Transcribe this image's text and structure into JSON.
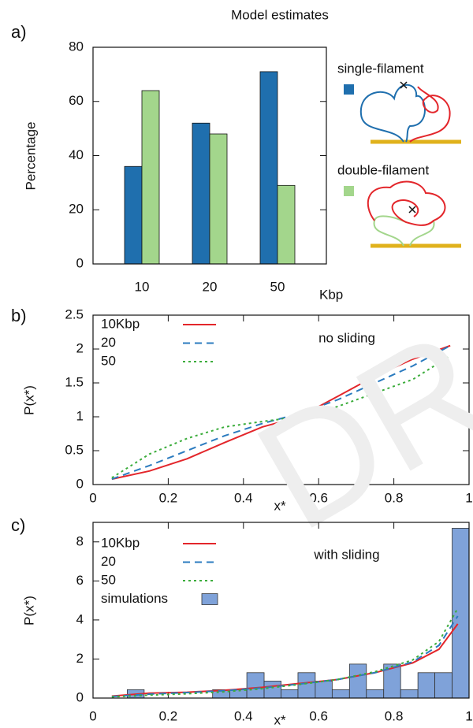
{
  "chart_data": [
    {
      "type": "bar",
      "panel_label": "a)",
      "title": "Model estimates",
      "ylabel": "Percentage",
      "xlabel": "Kbp",
      "categories": [
        "10",
        "20",
        "50"
      ],
      "series": [
        {
          "name": "single-filament",
          "color": "#1f6fae",
          "values": [
            36,
            52,
            71
          ]
        },
        {
          "name": "double-filament",
          "color": "#a3d68c",
          "values": [
            64,
            48,
            29
          ]
        }
      ],
      "ylim": [
        0,
        80
      ],
      "yticks": [
        0,
        20,
        40,
        60,
        80
      ],
      "legend": "right"
    },
    {
      "type": "line",
      "panel_label": "b)",
      "ylabel": "P(x*)",
      "xlabel": "x*",
      "annotation": "no sliding",
      "x": [
        0.05,
        0.15,
        0.25,
        0.35,
        0.45,
        0.55,
        0.65,
        0.75,
        0.85,
        0.95
      ],
      "series": [
        {
          "name": "10Kbp",
          "color": "#e3262b",
          "dash": "solid",
          "values": [
            0.08,
            0.2,
            0.38,
            0.62,
            0.85,
            1.0,
            1.3,
            1.6,
            1.85,
            2.05
          ]
        },
        {
          "name": "20",
          "color": "#2b7bbf",
          "dash": "dashed",
          "values": [
            0.08,
            0.28,
            0.5,
            0.72,
            0.9,
            1.05,
            1.25,
            1.5,
            1.75,
            2.05
          ]
        },
        {
          "name": "50",
          "color": "#3cad3c",
          "dash": "dotted",
          "values": [
            0.1,
            0.45,
            0.68,
            0.85,
            0.93,
            1.0,
            1.15,
            1.35,
            1.55,
            1.9
          ]
        }
      ],
      "xlim": [
        0,
        1
      ],
      "xticks": [
        0,
        0.2,
        0.4,
        0.6,
        0.8,
        1
      ],
      "ylim": [
        0,
        2.5
      ],
      "yticks": [
        0,
        0.5,
        1,
        1.5,
        2,
        2.5
      ],
      "legend": "top-left"
    },
    {
      "type": "line",
      "panel_label": "c)",
      "ylabel": "P(x*)",
      "xlabel": "x*",
      "annotation": "with sliding",
      "watermark": "DR",
      "x": [
        0.05,
        0.15,
        0.25,
        0.35,
        0.45,
        0.55,
        0.65,
        0.75,
        0.85,
        0.92,
        0.97
      ],
      "series": [
        {
          "name": "10Kbp",
          "color": "#e3262b",
          "dash": "solid",
          "values": [
            0.1,
            0.25,
            0.3,
            0.4,
            0.55,
            0.75,
            0.95,
            1.3,
            1.8,
            2.5,
            3.8
          ]
        },
        {
          "name": "20",
          "color": "#2b7bbf",
          "dash": "dashed",
          "values": [
            0.08,
            0.2,
            0.28,
            0.38,
            0.52,
            0.72,
            0.95,
            1.3,
            1.85,
            2.7,
            4.2
          ]
        },
        {
          "name": "50",
          "color": "#3cad3c",
          "dash": "dotted",
          "values": [
            0.06,
            0.15,
            0.22,
            0.32,
            0.48,
            0.7,
            0.95,
            1.35,
            1.95,
            2.9,
            4.6
          ]
        }
      ],
      "histogram": {
        "name": "simulations",
        "color": "#7fa2d9",
        "bins": [
          0,
          0.045,
          0.091,
          0.136,
          0.182,
          0.227,
          0.273,
          0.318,
          0.364,
          0.409,
          0.455,
          0.5,
          0.545,
          0.591,
          0.636,
          0.682,
          0.727,
          0.773,
          0.818,
          0.864,
          0.909,
          0.955,
          1
        ],
        "counts": [
          0,
          0,
          0.43,
          0,
          0,
          0,
          0,
          0.43,
          0.43,
          1.3,
          0.87,
          0.43,
          1.3,
          0.87,
          0.43,
          1.74,
          0.43,
          1.74,
          0.43,
          1.3,
          1.3,
          8.7
        ]
      },
      "xlim": [
        0,
        1
      ],
      "xticks": [
        0,
        0.2,
        0.4,
        0.6,
        0.8,
        1
      ],
      "ylim": [
        0,
        9
      ],
      "yticks": [
        0,
        2,
        4,
        6,
        8
      ],
      "legend": "top-left"
    }
  ]
}
